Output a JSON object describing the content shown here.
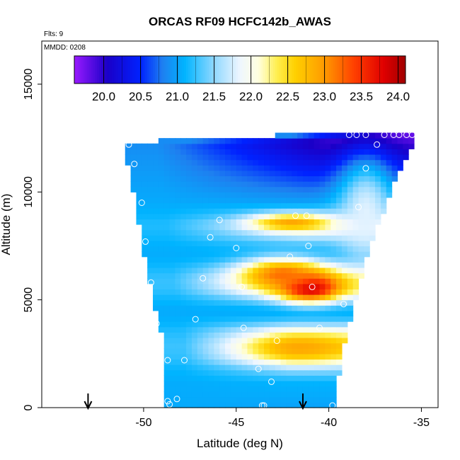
{
  "chart_data": {
    "type": "heatmap",
    "title": "ORCAS RF09 HCFC142b_AWAS",
    "flights_label": "Flts: 9",
    "date_label": "MMDD: 0208",
    "xlabel": "Latitude (deg N)",
    "ylabel": "Altitude (m)",
    "xlim": [
      -55.5,
      -34.1
    ],
    "ylim": [
      0,
      17000
    ],
    "x_ticks": [
      -50,
      -45,
      -40,
      -35
    ],
    "x_tick_labels": [
      "-50",
      "-45",
      "-40",
      "-35"
    ],
    "y_ticks": [
      0,
      5000,
      10000,
      15000
    ],
    "y_tick_labels": [
      "0",
      "5000",
      "10000",
      "15000"
    ],
    "colorbar": {
      "range": [
        19.6,
        24.1
      ],
      "ticks": [
        20.0,
        20.5,
        21.0,
        21.5,
        22.0,
        22.5,
        23.0,
        23.5,
        24.0
      ],
      "tick_labels": [
        "20.0",
        "20.5",
        "21.0",
        "21.5",
        "22.0",
        "22.5",
        "23.0",
        "23.5",
        "24.0"
      ],
      "stops": [
        {
          "v": 19.6,
          "color": "#9a1aff"
        },
        {
          "v": 20.05,
          "color": "#1a00c8"
        },
        {
          "v": 20.5,
          "color": "#0022ff"
        },
        {
          "v": 20.8,
          "color": "#1e80f0"
        },
        {
          "v": 21.1,
          "color": "#00b4ff"
        },
        {
          "v": 21.5,
          "color": "#90d8ff"
        },
        {
          "v": 21.85,
          "color": "#eef6ff"
        },
        {
          "v": 22.1,
          "color": "#ffffe0"
        },
        {
          "v": 22.35,
          "color": "#ffef50"
        },
        {
          "v": 22.6,
          "color": "#ffd000"
        },
        {
          "v": 23.0,
          "color": "#ff9a00"
        },
        {
          "v": 23.4,
          "color": "#ff4000"
        },
        {
          "v": 23.8,
          "color": "#e00000"
        },
        {
          "v": 24.1,
          "color": "#a00000"
        }
      ]
    },
    "field": {
      "note_lat_range": [
        -50.9,
        -35.5
      ],
      "envelope": [
        {
          "alt": 0,
          "lat_min": -48.8,
          "lat_max": -39.7
        },
        {
          "alt": 1500,
          "lat_min": -48.8,
          "lat_max": -39.6
        },
        {
          "alt": 3000,
          "lat_min": -48.8,
          "lat_max": -39.3
        },
        {
          "alt": 4500,
          "lat_min": -49.2,
          "lat_max": -38.9
        },
        {
          "alt": 6000,
          "lat_min": -49.6,
          "lat_max": -38.4
        },
        {
          "alt": 7500,
          "lat_min": -49.9,
          "lat_max": -38.0
        },
        {
          "alt": 9000,
          "lat_min": -50.2,
          "lat_max": -37.2
        },
        {
          "alt": 10500,
          "lat_min": -50.5,
          "lat_max": -36.6
        },
        {
          "alt": 12000,
          "lat_min": -50.9,
          "lat_max": -35.8
        },
        {
          "alt": 12300,
          "lat_min": -50.9,
          "lat_max": -35.5
        },
        {
          "alt": 12800,
          "lat_min": -38.5,
          "lat_max": -35.5
        }
      ],
      "profile": [
        {
          "alt": 0,
          "v": 21.0
        },
        {
          "alt": 600,
          "v": 21.05
        },
        {
          "alt": 1200,
          "v": 21.1
        },
        {
          "alt": 1800,
          "v": 21.5
        },
        {
          "alt": 2300,
          "v": 22.2
        },
        {
          "alt": 2800,
          "v": 22.5
        },
        {
          "alt": 3200,
          "v": 22.3
        },
        {
          "alt": 3600,
          "v": 21.9
        },
        {
          "alt": 4000,
          "v": 21.3
        },
        {
          "alt": 4500,
          "v": 21.0
        },
        {
          "alt": 5000,
          "v": 21.5
        },
        {
          "alt": 5500,
          "v": 22.3
        },
        {
          "alt": 6000,
          "v": 22.4
        },
        {
          "alt": 6500,
          "v": 21.7
        },
        {
          "alt": 7000,
          "v": 21.1
        },
        {
          "alt": 7500,
          "v": 21.2
        },
        {
          "alt": 8000,
          "v": 21.7
        },
        {
          "alt": 8500,
          "v": 22.0
        },
        {
          "alt": 9000,
          "v": 21.4
        },
        {
          "alt": 9500,
          "v": 21.0
        },
        {
          "alt": 10000,
          "v": 20.8
        },
        {
          "alt": 10500,
          "v": 20.6
        },
        {
          "alt": 11000,
          "v": 20.4
        },
        {
          "alt": 11500,
          "v": 20.2
        },
        {
          "alt": 12000,
          "v": 20.0
        },
        {
          "alt": 12500,
          "v": 19.8
        },
        {
          "alt": 13000,
          "v": 19.7
        }
      ],
      "hotspots": [
        {
          "lat": -41.0,
          "alt": 5600,
          "v": 24.0,
          "sx": 1.6,
          "sy": 650
        },
        {
          "lat": -42.5,
          "alt": 6200,
          "v": 23.2,
          "sx": 2.2,
          "sy": 700
        },
        {
          "lat": -41.5,
          "alt": 2800,
          "v": 22.9,
          "sx": 2.6,
          "sy": 600
        },
        {
          "lat": -42.0,
          "alt": 8600,
          "v": 22.9,
          "sx": 2.2,
          "sy": 400
        },
        {
          "lat": -38.0,
          "alt": 9000,
          "v": 21.8,
          "sx": 1.5,
          "sy": 2500
        }
      ]
    },
    "sample_points": [
      {
        "lat": -50.8,
        "alt": 12200
      },
      {
        "lat": -50.5,
        "alt": 11300
      },
      {
        "lat": -50.1,
        "alt": 9500
      },
      {
        "lat": -49.9,
        "alt": 7700
      },
      {
        "lat": -49.6,
        "alt": 5800
      },
      {
        "lat": -49.3,
        "alt": 3900
      },
      {
        "lat": -48.7,
        "alt": 2200
      },
      {
        "lat": -48.2,
        "alt": 400
      },
      {
        "lat": -48.7,
        "alt": 300
      },
      {
        "lat": -48.6,
        "alt": 150
      },
      {
        "lat": -47.8,
        "alt": 2200
      },
      {
        "lat": -47.2,
        "alt": 4100
      },
      {
        "lat": -46.8,
        "alt": 6000
      },
      {
        "lat": -46.4,
        "alt": 7900
      },
      {
        "lat": -45.9,
        "alt": 8700
      },
      {
        "lat": -45.0,
        "alt": 7400
      },
      {
        "lat": -44.7,
        "alt": 5600
      },
      {
        "lat": -44.6,
        "alt": 3700
      },
      {
        "lat": -43.8,
        "alt": 1800
      },
      {
        "lat": -43.1,
        "alt": 1200
      },
      {
        "lat": -43.5,
        "alt": 100
      },
      {
        "lat": -43.6,
        "alt": 100
      },
      {
        "lat": -42.8,
        "alt": 3100
      },
      {
        "lat": -42.1,
        "alt": 7000
      },
      {
        "lat": -41.8,
        "alt": 8900
      },
      {
        "lat": -41.2,
        "alt": 8900
      },
      {
        "lat": -41.1,
        "alt": 7500
      },
      {
        "lat": -40.9,
        "alt": 5600
      },
      {
        "lat": -40.5,
        "alt": 3700
      },
      {
        "lat": -39.8,
        "alt": 100
      },
      {
        "lat": -39.2,
        "alt": 4800
      },
      {
        "lat": -38.4,
        "alt": 9300
      },
      {
        "lat": -38.0,
        "alt": 11100
      },
      {
        "lat": -37.4,
        "alt": 12200
      },
      {
        "lat": -38.9,
        "alt": 12650
      },
      {
        "lat": -38.5,
        "alt": 12650
      },
      {
        "lat": -38.0,
        "alt": 12650
      },
      {
        "lat": -37.0,
        "alt": 12650
      },
      {
        "lat": -36.5,
        "alt": 12650
      },
      {
        "lat": -36.2,
        "alt": 12650
      },
      {
        "lat": -35.8,
        "alt": 12650
      },
      {
        "lat": -35.5,
        "alt": 12650
      }
    ],
    "flight_arrows_lat": [
      -53.0,
      -41.4
    ]
  }
}
